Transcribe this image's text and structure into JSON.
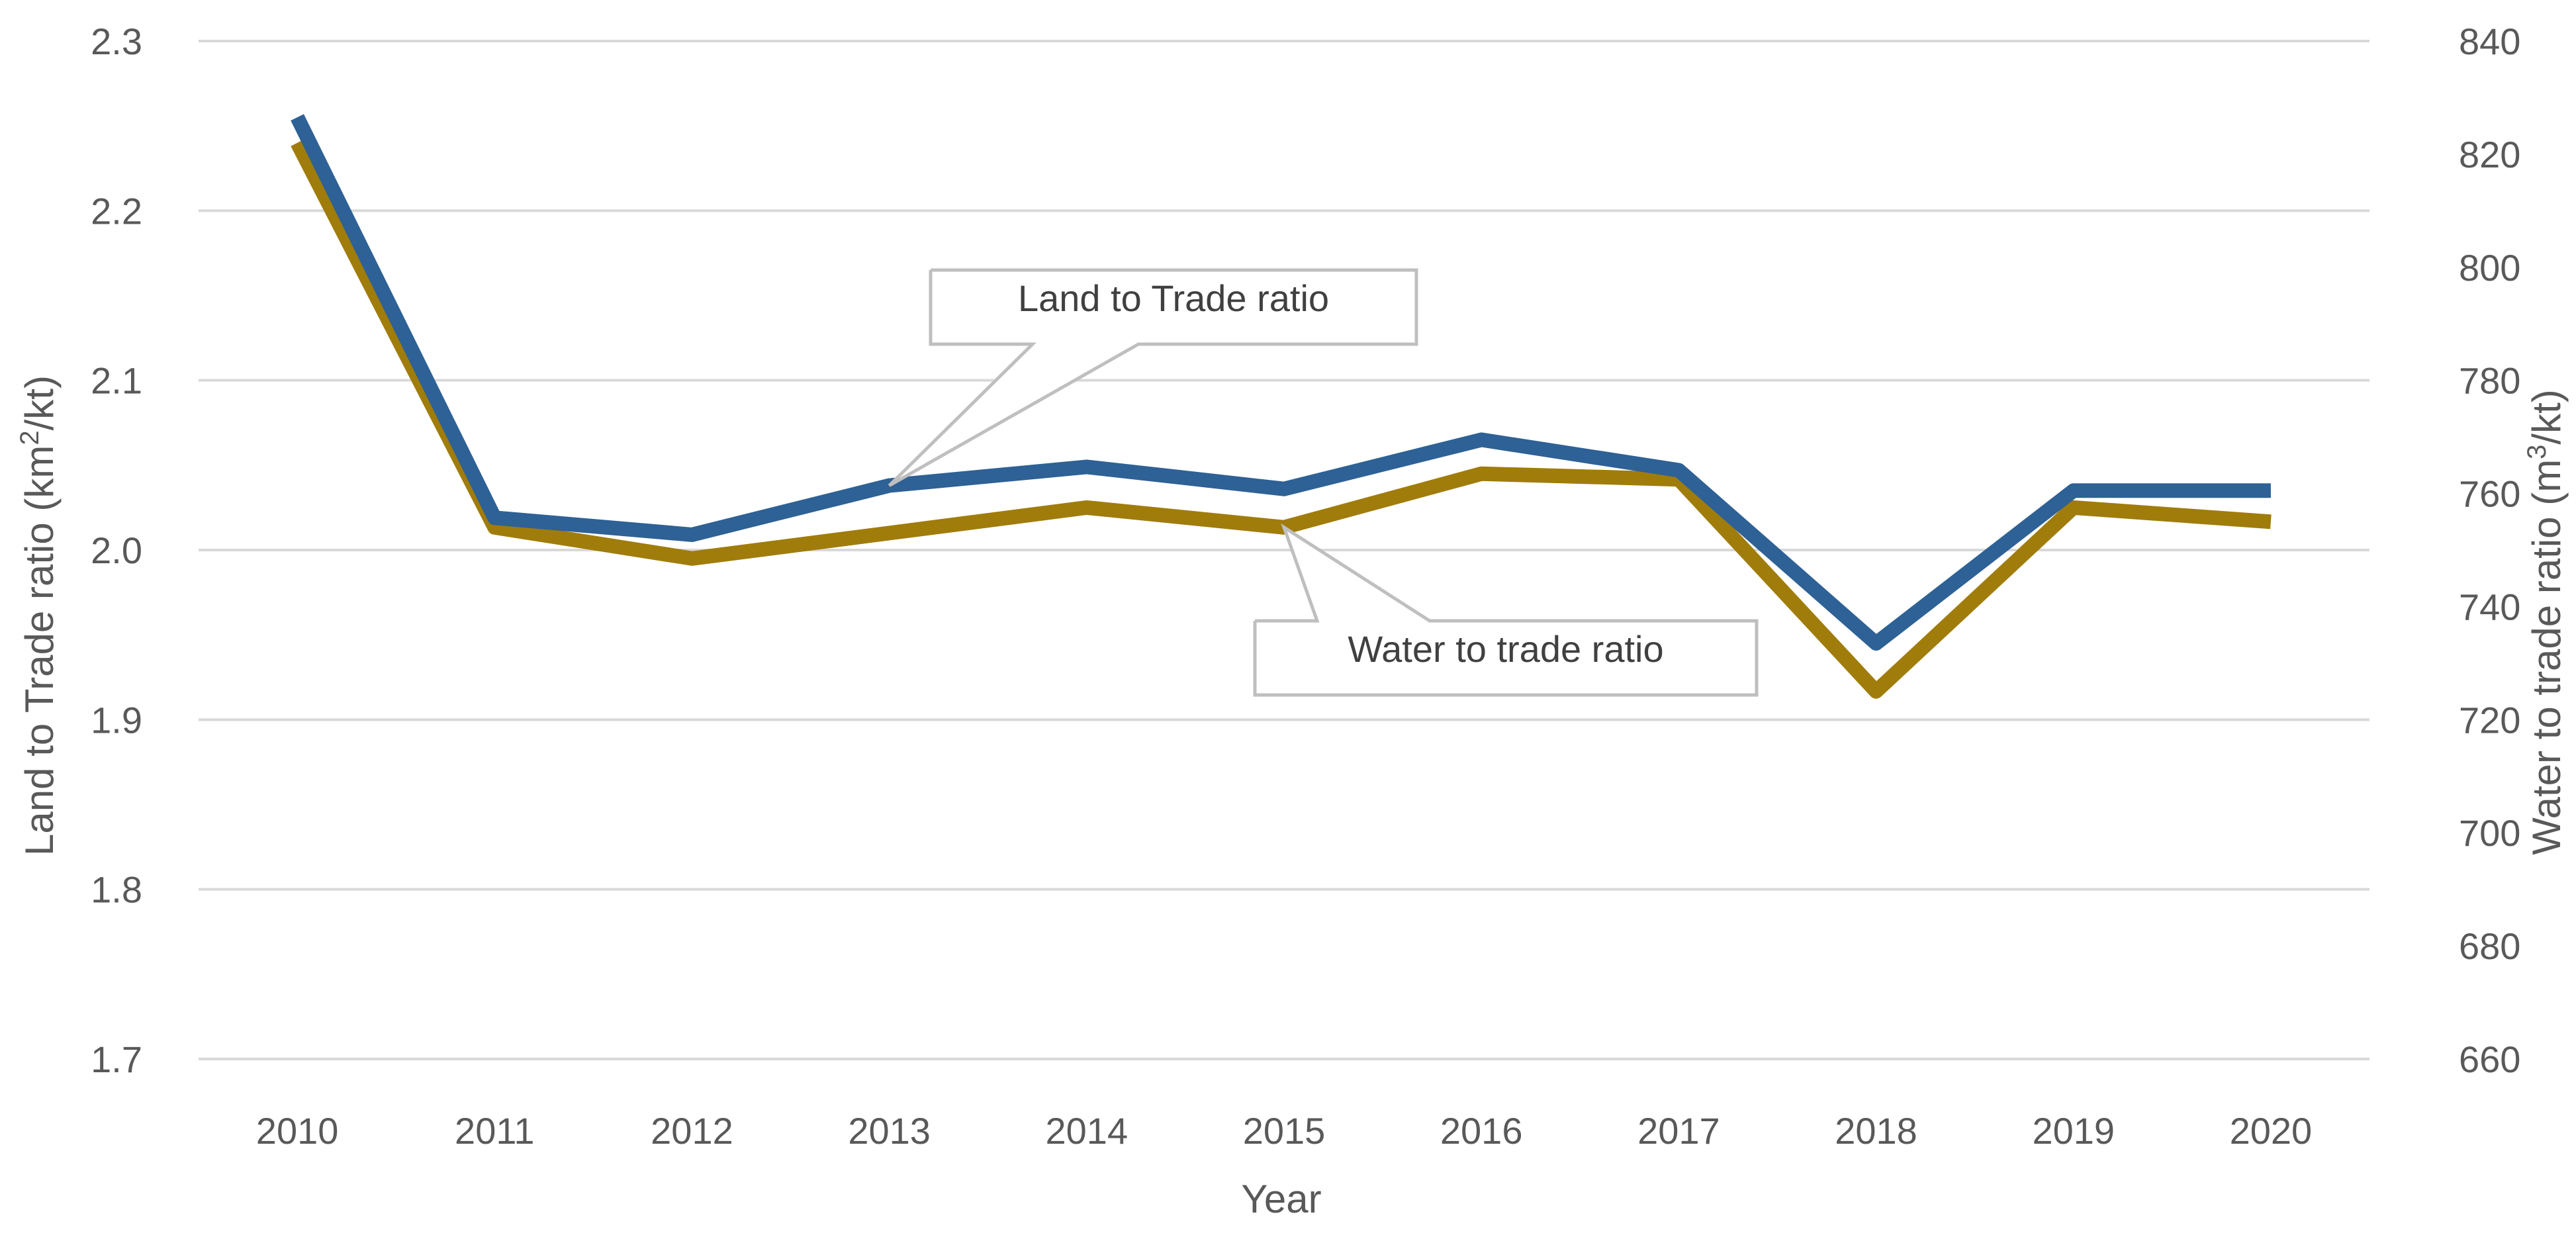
{
  "chart_data": {
    "type": "line",
    "title": "",
    "xlabel": "Year",
    "ylabel_left": {
      "prefix": "Land to Trade ratio (km",
      "sup": "2",
      "suffix": "/kt)"
    },
    "ylabel_right": {
      "prefix": "Water to trade ratio (m",
      "sup": "3",
      "suffix": "/kt)"
    },
    "categories": [
      "2010",
      "2011",
      "2012",
      "2013",
      "2014",
      "2015",
      "2016",
      "2017",
      "2018",
      "2019",
      "2020"
    ],
    "ylim_left": [
      1.7,
      2.3
    ],
    "yticks_left": [
      "1.7",
      "1.8",
      "1.9",
      "2.0",
      "2.1",
      "2.2",
      "2.3"
    ],
    "ylim_right": [
      660,
      840
    ],
    "yticks_right": [
      "660",
      "680",
      "700",
      "720",
      "740",
      "760",
      "780",
      "800",
      "820",
      "840"
    ],
    "grid": true,
    "series": [
      {
        "name": "Land to Trade ratio",
        "axis": "left",
        "color": "#2e6195",
        "values": [
          2.255,
          2.019,
          2.009,
          2.038,
          2.049,
          2.036,
          2.065,
          2.047,
          1.945,
          2.035,
          2.035
        ],
        "callout_anchor_index": 3
      },
      {
        "name": "Water to trade ratio",
        "axis": "right",
        "color": "#a07c0b",
        "values": [
          822,
          754,
          748.5,
          753,
          757.5,
          754,
          763.5,
          762.5,
          725,
          757.5,
          755
        ],
        "callout_anchor_index": 5
      }
    ]
  }
}
